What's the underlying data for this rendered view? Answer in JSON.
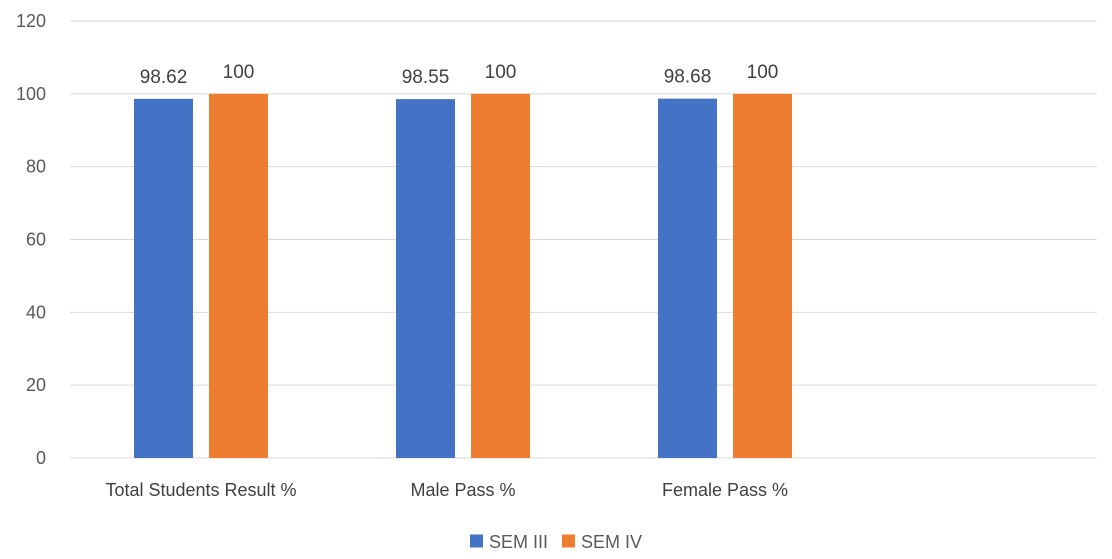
{
  "chart_data": {
    "type": "bar",
    "title": "",
    "xlabel": "",
    "ylabel": "",
    "categories": [
      "Total Students Result %",
      "Male Pass %",
      "Female Pass %"
    ],
    "ylim": [
      0,
      120
    ],
    "yticks": [
      0,
      20,
      40,
      60,
      80,
      100,
      120
    ],
    "grid": true,
    "legend_position": "bottom",
    "series": [
      {
        "name": "SEM III",
        "color": "#4472c4",
        "values": [
          98.62,
          98.55,
          98.68
        ],
        "labels": [
          "98.62",
          "98.55",
          "98.68"
        ]
      },
      {
        "name": "SEM IV",
        "color": "#ed7d31",
        "values": [
          100,
          100,
          100
        ],
        "labels": [
          "100",
          "100",
          "100"
        ]
      }
    ]
  }
}
